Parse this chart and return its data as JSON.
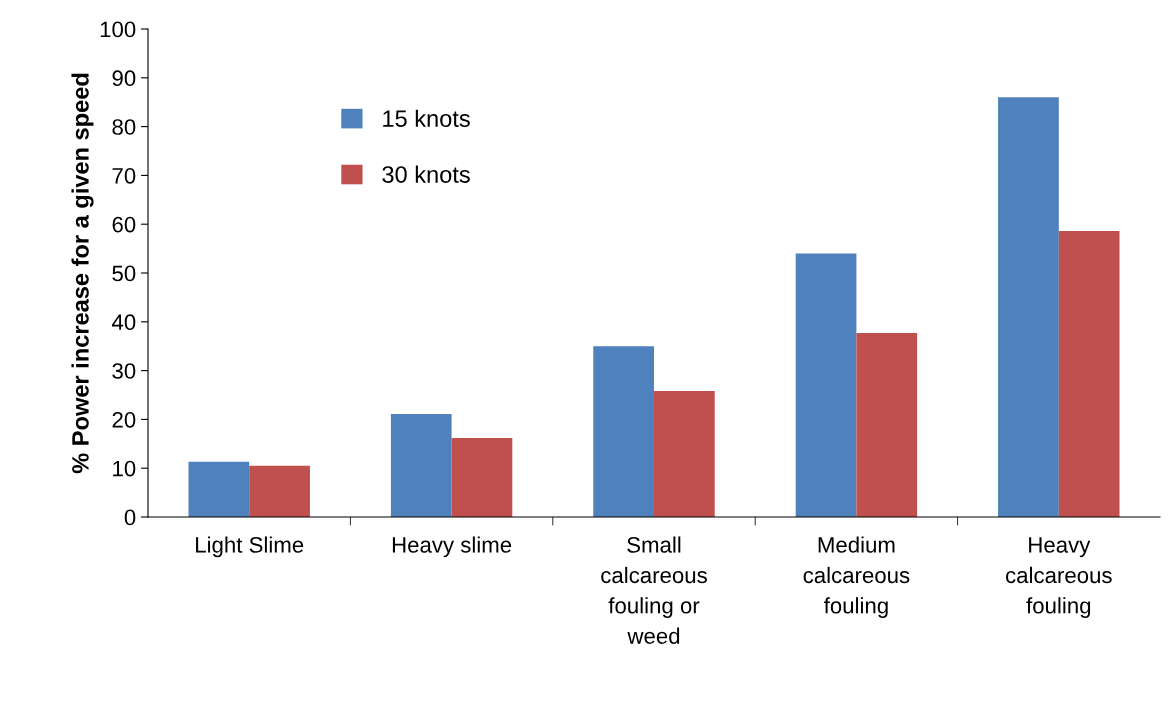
{
  "chart_data": {
    "type": "bar",
    "ylabel": "% Power increase for a given speed",
    "categories": [
      "Light Slime",
      "Heavy slime",
      "Small\ncalcareous\nfouling or\nweed",
      "Medium\ncalcareous\nfouling",
      "Heavy\ncalcareous\nfouling"
    ],
    "series": [
      {
        "name": "15 knots",
        "color": "#4f81bd",
        "values": [
          11.3,
          21.1,
          35,
          54,
          86
        ]
      },
      {
        "name": "30 knots",
        "color": "#c0504d",
        "values": [
          10.5,
          16.2,
          25.8,
          37.7,
          58.6
        ]
      }
    ],
    "ylim": [
      0,
      100
    ],
    "yticks": [
      0,
      10,
      20,
      30,
      40,
      50,
      60,
      70,
      80,
      90,
      100
    ],
    "grid": false,
    "legend": "top left"
  }
}
